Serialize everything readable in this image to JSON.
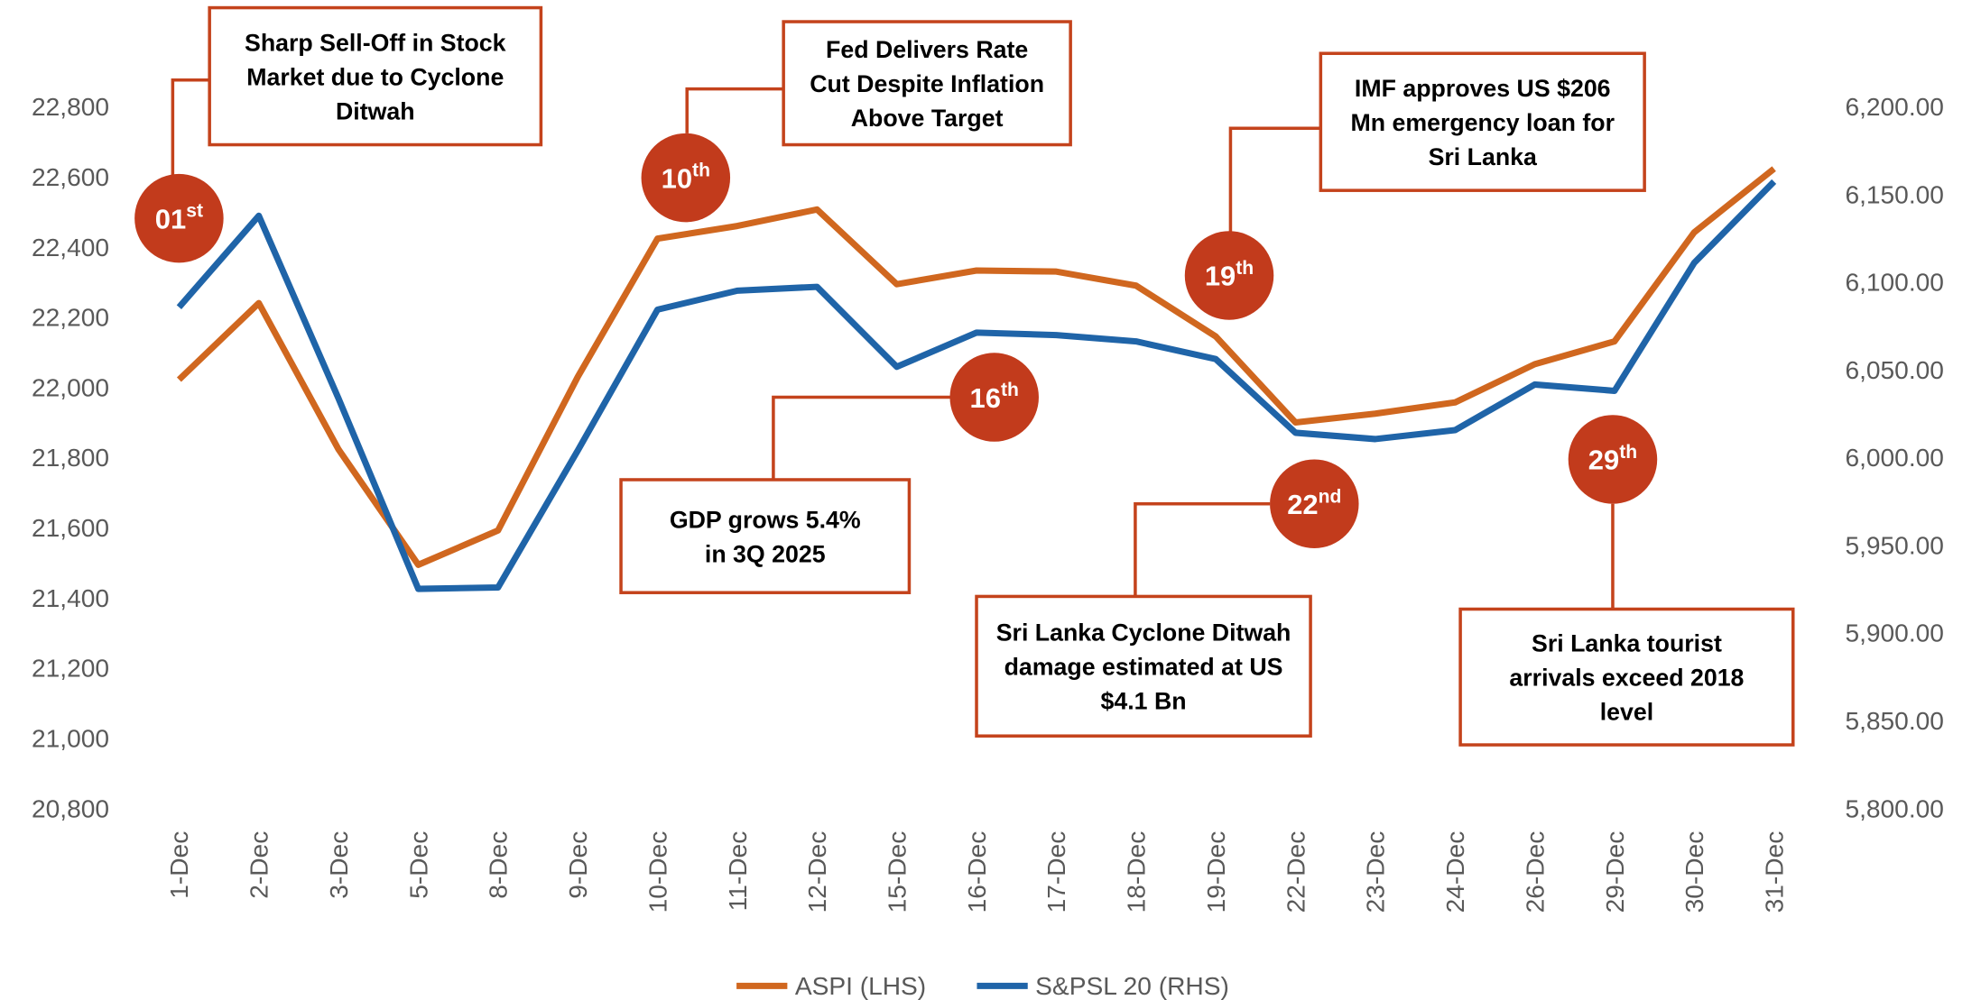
{
  "chart_data": {
    "type": "line",
    "categories": [
      "1-Dec",
      "2-Dec",
      "3-Dec",
      "5-Dec",
      "8-Dec",
      "9-Dec",
      "10-Dec",
      "11-Dec",
      "12-Dec",
      "15-Dec",
      "16-Dec",
      "17-Dec",
      "18-Dec",
      "19-Dec",
      "22-Dec",
      "23-Dec",
      "24-Dec",
      "26-Dec",
      "29-Dec",
      "30-Dec",
      "31-Dec"
    ],
    "series": [
      {
        "name": "ASPI (LHS)",
        "color": "#d0671f",
        "values": [
          22022,
          22240,
          21823,
          21494,
          21592,
          22030,
          22424,
          22460,
          22507,
          22294,
          22333,
          22330,
          22290,
          22145,
          21900,
          21925,
          21957,
          22066,
          22131,
          22442,
          22623
        ]
      },
      {
        "name": "S&PSL 20 (RHS)",
        "color": "#1f64a8",
        "axis": "y2",
        "values": [
          6085.7,
          6137.8,
          6033.6,
          5925.1,
          5925.9,
          6004,
          6084.3,
          6095.1,
          6097.3,
          6051.7,
          6071.2,
          6069.8,
          6066.2,
          6056.1,
          6014.1,
          6010.5,
          6015.6,
          6041.6,
          6038,
          6111,
          6157.3
        ]
      }
    ],
    "ylim": [
      20800,
      22800
    ],
    "yticks": [
      {
        "value": 20800,
        "label": "20,800"
      },
      {
        "value": 21000,
        "label": "21,000"
      },
      {
        "value": 21200,
        "label": "21,200"
      },
      {
        "value": 21400,
        "label": "21,400"
      },
      {
        "value": 21600,
        "label": "21,600"
      },
      {
        "value": 21800,
        "label": "21,800"
      },
      {
        "value": 22000,
        "label": "22,000"
      },
      {
        "value": 22200,
        "label": "22,200"
      },
      {
        "value": 22400,
        "label": "22,400"
      },
      {
        "value": 22600,
        "label": "22,600"
      },
      {
        "value": 22800,
        "label": "22,800"
      }
    ],
    "y2lim": [
      5800,
      6200
    ],
    "y2ticks": [
      {
        "value": 5800,
        "label": "5,800.00"
      },
      {
        "value": 5850,
        "label": "5,850.00"
      },
      {
        "value": 5900,
        "label": "5,900.00"
      },
      {
        "value": 5950,
        "label": "5,950.00"
      },
      {
        "value": 6000,
        "label": "6,000.00"
      },
      {
        "value": 6050,
        "label": "6,050.00"
      },
      {
        "value": 6100,
        "label": "6,100.00"
      },
      {
        "value": 6150,
        "label": "6,150.00"
      },
      {
        "value": 6200,
        "label": "6,200.00"
      }
    ],
    "legend": "bottom",
    "annotations": [
      {
        "day": "01",
        "suffix": "st",
        "lines": [
          "Sharp Sell-Off in Stock",
          "Market due to Cyclone",
          "Ditwah"
        ]
      },
      {
        "day": "10",
        "suffix": "th",
        "lines": [
          "Fed Delivers Rate",
          "Cut Despite Inflation",
          "Above Target"
        ]
      },
      {
        "day": "19",
        "suffix": "th",
        "lines": [
          "IMF approves US $206",
          "Mn emergency loan for",
          "Sri Lanka"
        ]
      },
      {
        "day": "16",
        "suffix": "th",
        "lines": [
          "GDP grows 5.4%",
          "in 3Q 2025"
        ]
      },
      {
        "day": "22",
        "suffix": "nd",
        "lines": [
          "Sri Lanka Cyclone Ditwah",
          "damage estimated at US",
          "$4.1 Bn"
        ]
      },
      {
        "day": "29",
        "suffix": "th",
        "lines": [
          "Sri Lanka tourist",
          "arrivals exceed 2018",
          "level"
        ]
      }
    ]
  }
}
